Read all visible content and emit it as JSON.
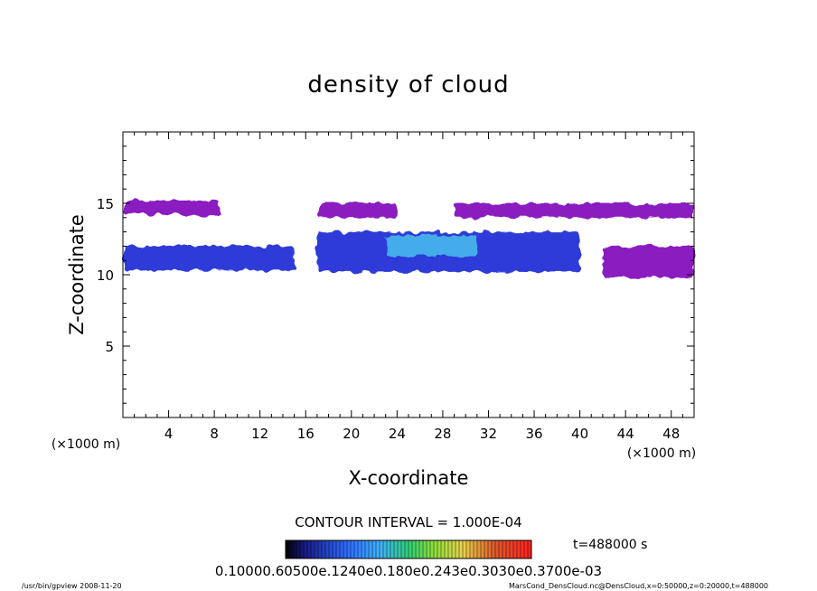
{
  "chart_data": {
    "type": "heatmap",
    "title": "density of cloud",
    "xlabel": "X-coordinate",
    "ylabel": "Z-coordinate",
    "x_unit": "(×1000 m)",
    "xlim": [
      0,
      50
    ],
    "ylim": [
      0,
      20
    ],
    "x_ticks": [
      "4",
      "8",
      "12",
      "16",
      "20",
      "24",
      "28",
      "32",
      "36",
      "40",
      "44",
      "48"
    ],
    "y_ticks": [
      "5",
      "10",
      "15"
    ],
    "contour_interval": "CONTOUR INTERVAL = 1.000E-04",
    "time_label": "t=488000 s",
    "colorbar_labels": "0.10000e-05 0.6000e-04 0.1200e-03 0.1800e-03 0.2400e-03 0.3000e-03 0.3700e-03",
    "colorbar_labels_rendered": "0.10000.60500e.1240e0.180e0.243e0.3030e0.3700e-03",
    "colors": {
      "low": "#8a1fc0",
      "mid": "#2e3ad8",
      "high": "#49c0ee",
      "colorbar": [
        "#000000",
        "#1b1b8a",
        "#2d6bff",
        "#3fb0ff",
        "#2fd07a",
        "#8bdf3a",
        "#e7d44a",
        "#e8a03a",
        "#e05a2a",
        "#ff2020"
      ]
    },
    "cloud_regions": [
      {
        "x": [
          0,
          8.5
        ],
        "z": [
          14.2,
          15.2
        ],
        "level": "low"
      },
      {
        "x": [
          17,
          24
        ],
        "z": [
          14.0,
          15.0
        ],
        "level": "low"
      },
      {
        "x": [
          29,
          50
        ],
        "z": [
          14.0,
          15.0
        ],
        "level": "low"
      },
      {
        "x": [
          0,
          15
        ],
        "z": [
          10.3,
          12.0
        ],
        "level": "mid"
      },
      {
        "x": [
          17,
          40
        ],
        "z": [
          10.2,
          13.0
        ],
        "level": "mid"
      },
      {
        "x": [
          23,
          31
        ],
        "z": [
          11.3,
          12.8
        ],
        "level": "high"
      },
      {
        "x": [
          42,
          50
        ],
        "z": [
          9.8,
          12.0
        ],
        "level": "low"
      }
    ]
  },
  "footer": {
    "left": "/usr/bin/gpview   2008-11-20",
    "right": "MarsCond_DensCloud.nc@DensCloud,x=0:50000,z=0:20000,t=488000"
  }
}
